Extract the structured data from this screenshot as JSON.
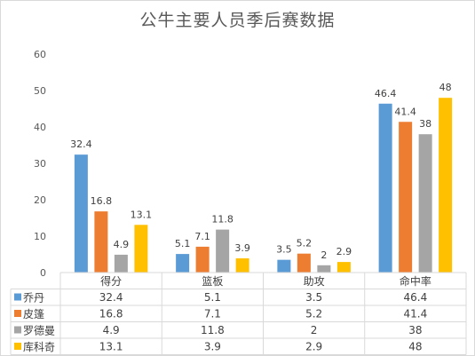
{
  "chart_data": {
    "type": "bar",
    "title": "公牛主要人员季后赛数据",
    "categories": [
      "得分",
      "篮板",
      "助攻",
      "命中率"
    ],
    "ylim": [
      0,
      60
    ],
    "yticks": [
      0,
      10,
      20,
      30,
      40,
      50,
      60
    ],
    "grid": false,
    "legend": "data-table",
    "series": [
      {
        "name": "乔丹",
        "color": "#5b9bd5",
        "values": [
          32.4,
          5.1,
          3.5,
          46.4
        ]
      },
      {
        "name": "皮篷",
        "color": "#ed7d31",
        "values": [
          16.8,
          7.1,
          5.2,
          41.4
        ]
      },
      {
        "name": "罗德曼",
        "color": "#a5a5a5",
        "values": [
          4.9,
          11.8,
          2,
          38
        ]
      },
      {
        "name": "库科奇",
        "color": "#ffc000",
        "values": [
          13.1,
          3.9,
          2.9,
          48
        ]
      }
    ]
  }
}
